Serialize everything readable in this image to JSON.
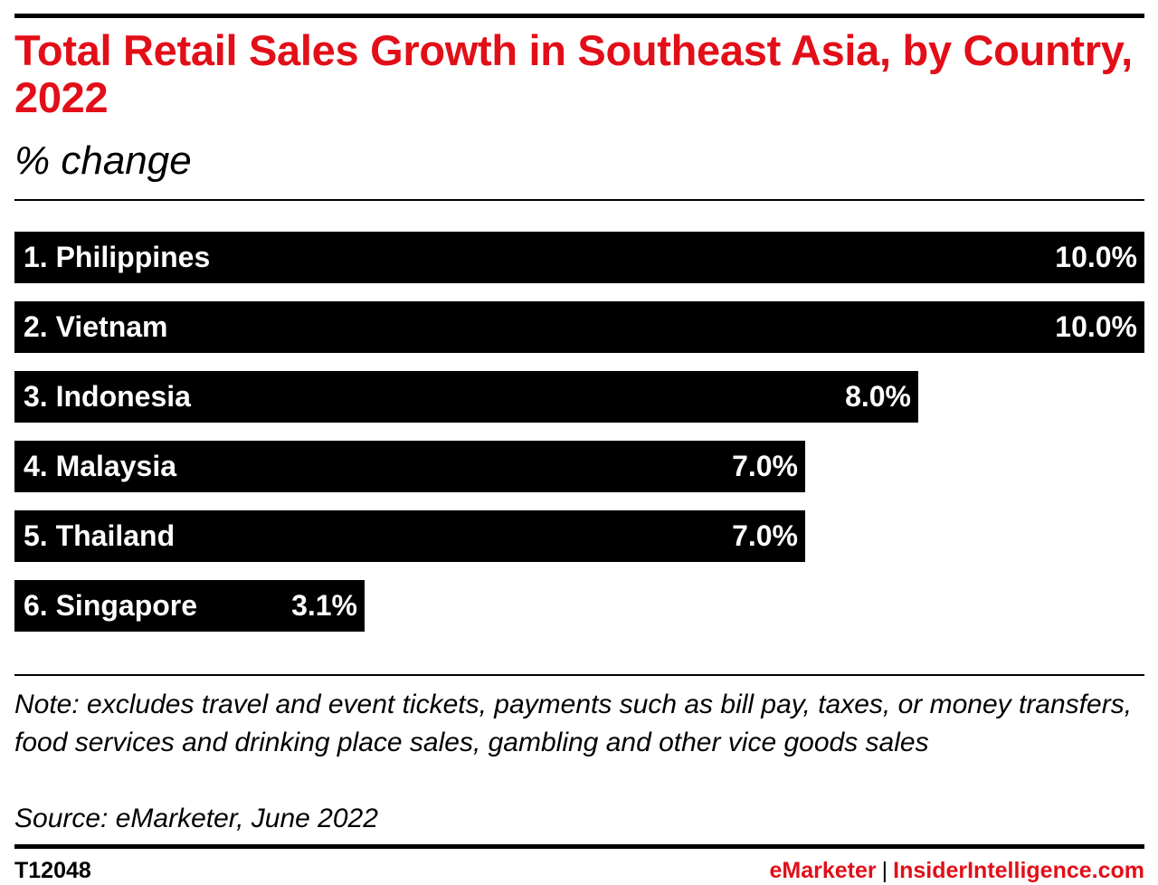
{
  "chart_data": {
    "type": "bar",
    "orientation": "horizontal",
    "title": "Total Retail Sales Growth in Southeast Asia, by Country, 2022",
    "subtitle": "% change",
    "categories": [
      "1. Philippines",
      "2. Vietnam",
      "3. Indonesia",
      "4. Malaysia",
      "5. Thailand",
      "6. Singapore"
    ],
    "values": [
      10.0,
      10.0,
      8.0,
      7.0,
      7.0,
      3.1
    ],
    "value_labels": [
      "10.0%",
      "10.0%",
      "8.0%",
      "7.0%",
      "7.0%",
      "3.1%"
    ],
    "xlim": [
      0,
      10
    ],
    "grid": false,
    "bar_color": "#000000",
    "label_color": "#ffffff"
  },
  "note": "Note: excludes travel and event tickets, payments such as bill pay, taxes, or money transfers, food services and drinking place sales, gambling and other vice goods sales",
  "source": "Source: eMarketer, June 2022",
  "footer": {
    "chart_id": "T12048",
    "brand_primary": "eMarketer",
    "brand_separator": "|",
    "brand_secondary": "InsiderIntelligence.com"
  },
  "colors": {
    "accent": "#e20f18",
    "bar": "#000000"
  }
}
